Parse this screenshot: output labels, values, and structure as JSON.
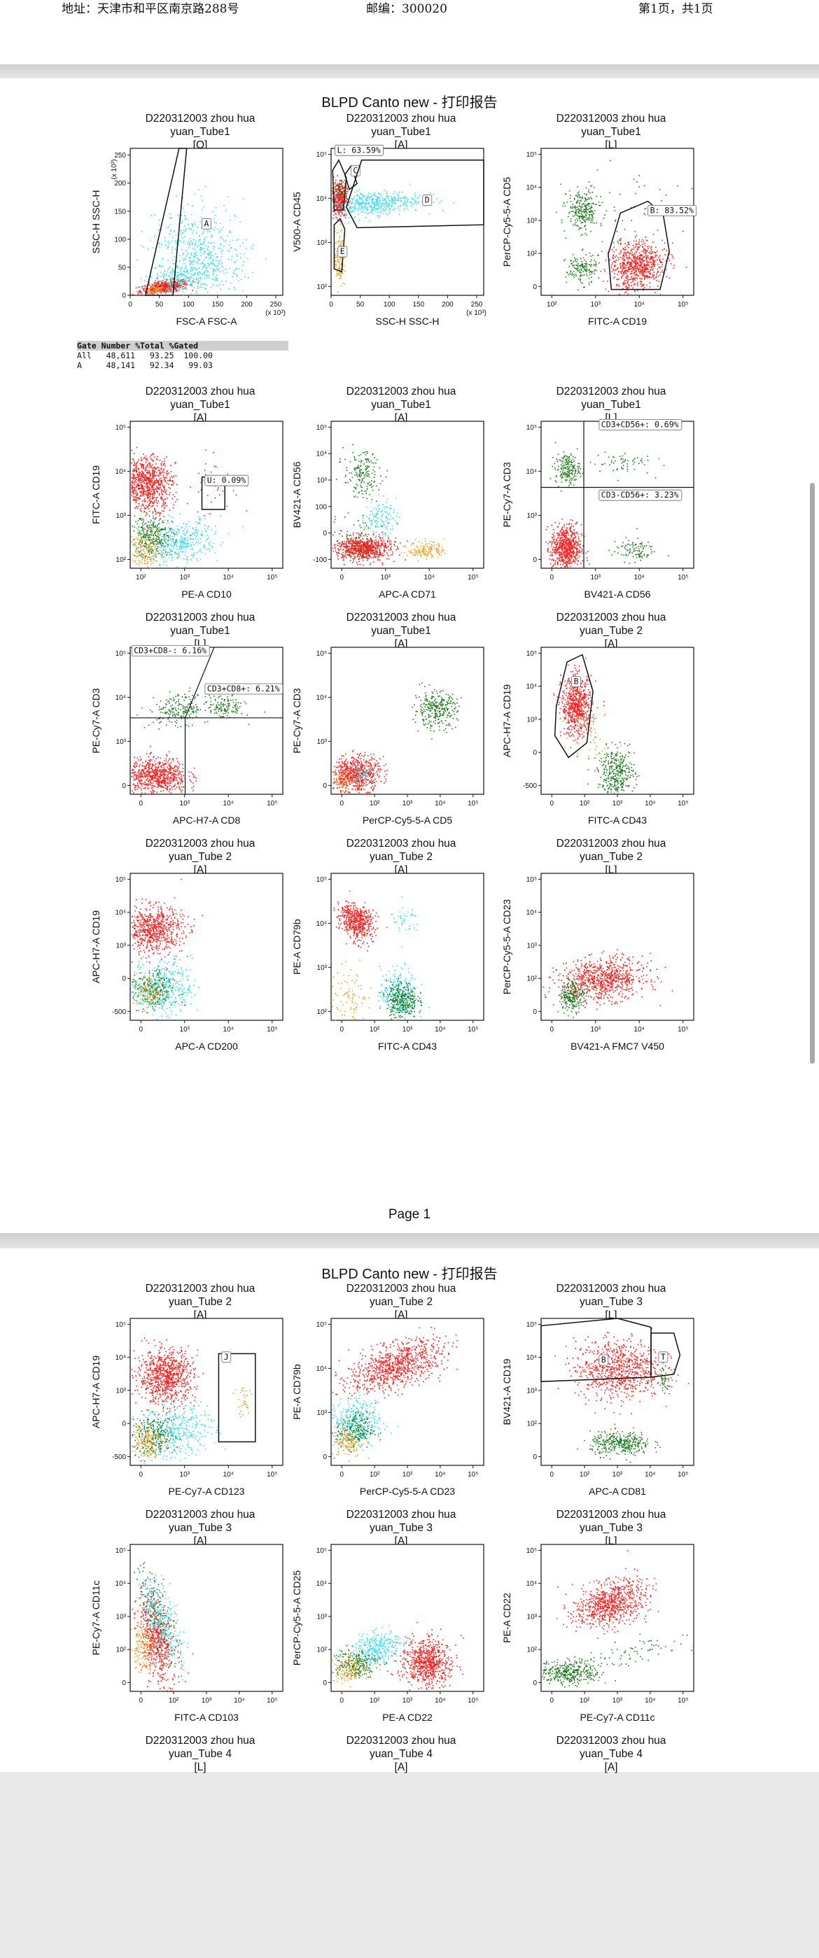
{
  "header": {
    "address": "地址：天津市和平区南京路288号",
    "postcode": "邮编：300020",
    "pageinfo": "第1页，共1页"
  },
  "report_title": "BLPD  Canto new - 打印报告",
  "page_label": "Page 1",
  "gate_stats": {
    "header": "Gate Number %Total %Gated",
    "rows": [
      {
        "gate": "All",
        "number": "48,611",
        "total": "93.25",
        "gated": "100.00"
      },
      {
        "gate": "A",
        "number": "48,141",
        "total": "92.34",
        "gated": "99.03"
      }
    ]
  },
  "colors": {
    "red": "#ff1a1a",
    "cyan": "#33e0f0",
    "green": "#1e7a1e",
    "orange": "#f0a020"
  },
  "chart_data": [
    {
      "id": "p1",
      "type": "scatter",
      "title": [
        "D220312003 zhou hua",
        "yuan_Tube1",
        "[O]"
      ],
      "xlabel": "FSC-A FSC-A",
      "ylabel": "SSC-H SSC-H",
      "xunit": "(x 10³)",
      "yunit": "(x 10³)",
      "xscale": "linear",
      "yscale": "linear",
      "xlim": [
        0,
        262
      ],
      "ylim": [
        0,
        262
      ],
      "xticks": [
        "0",
        "50",
        "100",
        "150",
        "200",
        "250"
      ],
      "yticks": [
        "0",
        "50",
        "100",
        "150",
        "200",
        "250"
      ],
      "gates": [
        {
          "label": "A",
          "text": ""
        }
      ]
    },
    {
      "id": "p2",
      "type": "scatter",
      "title": [
        "D220312003 zhou hua",
        "yuan_Tube1",
        "[A]"
      ],
      "xlabel": "SSC-H SSC-H",
      "ylabel": "V500-A CD45",
      "xunit": "(x 10³)",
      "xscale": "linear",
      "yscale": "log",
      "xlim": [
        0,
        262
      ],
      "xticks": [
        "0",
        "50",
        "100",
        "150",
        "200",
        "250"
      ],
      "yticks": [
        "10²",
        "10³",
        "10⁴",
        "10⁵"
      ],
      "gates": [
        {
          "label": "L",
          "text": "L: 63.59%"
        },
        {
          "label": "C",
          "text": ""
        },
        {
          "label": "D",
          "text": ""
        },
        {
          "label": "E",
          "text": ""
        }
      ]
    },
    {
      "id": "p3",
      "type": "scatter",
      "title": [
        "D220312003 zhou hua",
        "yuan_Tube1",
        "[L]"
      ],
      "xlabel": "FITC-A CD19",
      "ylabel": "PerCP-Cy5-5-A CD5",
      "xscale": "log",
      "yscale": "log",
      "xticks": [
        "10²",
        "10³",
        "10⁴",
        "10⁵"
      ],
      "yticks": [
        "0",
        "10²",
        "10³",
        "10⁴",
        "10⁵"
      ],
      "gates": [
        {
          "label": "B",
          "text": "B: 83.52%"
        }
      ]
    },
    {
      "id": "p4",
      "type": "scatter",
      "title": [
        "D220312003 zhou hua",
        "yuan_Tube1",
        "[A]"
      ],
      "xlabel": "PE-A CD10",
      "ylabel": "FITC-A CD19",
      "xscale": "log",
      "yscale": "log",
      "xticks": [
        "10²",
        "10³",
        "10⁴",
        "10⁵"
      ],
      "yticks": [
        "10²",
        "10³",
        "10⁴",
        "10⁵"
      ],
      "gates": [
        {
          "label": "U",
          "text": "U: 0.09%"
        }
      ]
    },
    {
      "id": "p5",
      "type": "scatter",
      "title": [
        "D220312003 zhou hua",
        "yuan_Tube1",
        "[A]"
      ],
      "xlabel": "APC-A CD71",
      "ylabel": "BV421-A CD56",
      "xscale": "log",
      "yscale": "log",
      "xticks": [
        "0",
        "10³",
        "10⁴",
        "10⁵"
      ],
      "yticks": [
        "-100",
        "0",
        "100",
        "10³",
        "10⁴",
        "10⁵"
      ],
      "gates": []
    },
    {
      "id": "p6",
      "type": "scatter",
      "title": [
        "D220312003 zhou hua",
        "yuan_Tube1",
        "[L]"
      ],
      "xlabel": "BV421-A CD56",
      "ylabel": "PE-Cy7-A CD3",
      "xscale": "log",
      "yscale": "log",
      "xticks": [
        "0",
        "10³",
        "10⁴",
        "10⁵"
      ],
      "yticks": [
        "0",
        "10³",
        "10⁴",
        "10⁵"
      ],
      "gates": [
        {
          "label": "CD3+CD56+",
          "text": "CD3+CD56+: 0.69%"
        },
        {
          "label": "CD3-CD56+",
          "text": "CD3-CD56+: 3.23%"
        }
      ]
    },
    {
      "id": "p7",
      "type": "scatter",
      "title": [
        "D220312003 zhou hua",
        "yuan_Tube1",
        "[L]"
      ],
      "xlabel": "APC-H7-A CD8",
      "ylabel": "PE-Cy7-A CD3",
      "xscale": "log",
      "yscale": "log",
      "xticks": [
        "0",
        "10³",
        "10⁴",
        "10⁵"
      ],
      "yticks": [
        "0",
        "10³",
        "10⁴",
        "10⁵"
      ],
      "gates": [
        {
          "label": "CD3+CD8-",
          "text": "CD3+CD8-: 6.16%"
        },
        {
          "label": "CD3+CD8+",
          "text": "CD3+CD8+: 6.21%"
        }
      ]
    },
    {
      "id": "p8",
      "type": "scatter",
      "title": [
        "D220312003 zhou hua",
        "yuan_Tube1",
        "[A]"
      ],
      "xlabel": "PerCP-Cy5-5-A CD5",
      "ylabel": "PE-Cy7-A CD3",
      "xscale": "log",
      "yscale": "log",
      "xticks": [
        "0",
        "10²",
        "10³",
        "10⁴",
        "10⁵"
      ],
      "yticks": [
        "0",
        "10³",
        "10⁴",
        "10⁵"
      ],
      "gates": []
    },
    {
      "id": "p9",
      "type": "scatter",
      "title": [
        "D220312003 zhou hua",
        "yuan_Tube 2",
        "[A]"
      ],
      "xlabel": "FITC-A CD43",
      "ylabel": "APC-H7-A CD19",
      "xscale": "log",
      "yscale": "log",
      "xticks": [
        "0",
        "10²",
        "10³",
        "10⁴",
        "10⁵"
      ],
      "yticks": [
        "-500",
        "0",
        "10³",
        "10⁴",
        "10⁵"
      ],
      "gates": [
        {
          "label": "B",
          "text": ""
        }
      ]
    },
    {
      "id": "p10",
      "type": "scatter",
      "title": [
        "D220312003 zhou hua",
        "yuan_Tube 2",
        "[A]"
      ],
      "xlabel": "APC-A CD200",
      "ylabel": "APC-H7-A CD19",
      "xscale": "log",
      "yscale": "log",
      "xticks": [
        "0",
        "10³",
        "10⁴",
        "10⁵"
      ],
      "yticks": [
        "-500",
        "0",
        "10³",
        "10⁴",
        "10⁵"
      ],
      "gates": []
    },
    {
      "id": "p11",
      "type": "scatter",
      "title": [
        "D220312003 zhou hua",
        "yuan_Tube 2",
        "[A]"
      ],
      "xlabel": "FITC-A CD43",
      "ylabel": "PE-A CD79b",
      "xscale": "log",
      "yscale": "log",
      "xticks": [
        "0",
        "10²",
        "10³",
        "10⁴",
        "10⁵"
      ],
      "yticks": [
        "10²",
        "10³",
        "10⁴",
        "10⁵"
      ],
      "gates": []
    },
    {
      "id": "p12",
      "type": "scatter",
      "title": [
        "D220312003 zhou hua",
        "yuan_Tube 2",
        "[L]"
      ],
      "xlabel": "BV421-A FMC7 V450",
      "ylabel": "PerCP-Cy5-5-A CD23",
      "xscale": "log",
      "yscale": "log",
      "xticks": [
        "0",
        "10³",
        "10⁴",
        "10⁵"
      ],
      "yticks": [
        "0",
        "10²",
        "10³",
        "10⁴",
        "10⁵"
      ],
      "gates": []
    },
    {
      "id": "p13",
      "type": "scatter",
      "title": [
        "D220312003 zhou hua",
        "yuan_Tube 2",
        "[A]"
      ],
      "xlabel": "PE-Cy7-A CD123",
      "ylabel": "APC-H7-A CD19",
      "xscale": "log",
      "yscale": "log",
      "xticks": [
        "0",
        "10³",
        "10⁴",
        "10⁵"
      ],
      "yticks": [
        "-500",
        "0",
        "10³",
        "10⁴",
        "10⁵"
      ],
      "gates": [
        {
          "label": "J",
          "text": ""
        }
      ]
    },
    {
      "id": "p14",
      "type": "scatter",
      "title": [
        "D220312003 zhou hua",
        "yuan_Tube 2",
        "[A]"
      ],
      "xlabel": "PerCP-Cy5-5-A CD23",
      "ylabel": "PE-A CD79b",
      "xscale": "log",
      "yscale": "log",
      "xticks": [
        "0",
        "10²",
        "10³",
        "10⁴",
        "10⁵"
      ],
      "yticks": [
        "0",
        "10³",
        "10⁴",
        "10⁵"
      ],
      "gates": []
    },
    {
      "id": "p15",
      "type": "scatter",
      "title": [
        "D220312003 zhou hua",
        "yuan_Tube 3",
        "[L]"
      ],
      "xlabel": "APC-A CD81",
      "ylabel": "BV421-A CD19",
      "xscale": "log",
      "yscale": "log",
      "xticks": [
        "0",
        "10²",
        "10³",
        "10⁴",
        "10⁵"
      ],
      "yticks": [
        "0",
        "10²",
        "10³",
        "10⁴",
        "10⁵"
      ],
      "gates": [
        {
          "label": "B",
          "text": ""
        },
        {
          "label": "T",
          "text": ""
        }
      ]
    },
    {
      "id": "p16",
      "type": "scatter",
      "title": [
        "D220312003 zhou hua",
        "yuan_Tube 3",
        "[A]"
      ],
      "xlabel": "FITC-A CD103",
      "ylabel": "PE-Cy7-A CD11c",
      "xscale": "log",
      "yscale": "log",
      "xticks": [
        "0",
        "10²",
        "10³",
        "10⁴",
        "10⁵"
      ],
      "yticks": [
        "0",
        "10²",
        "10³",
        "10⁴",
        "10⁵"
      ],
      "gates": []
    },
    {
      "id": "p17",
      "type": "scatter",
      "title": [
        "D220312003 zhou hua",
        "yuan_Tube 3",
        "[A]"
      ],
      "xlabel": "PE-A CD22",
      "ylabel": "PerCP-Cy5-5-A CD25",
      "xscale": "log",
      "yscale": "log",
      "xticks": [
        "0",
        "10²",
        "10³",
        "10⁴",
        "10⁵"
      ],
      "yticks": [
        "0",
        "10²",
        "10³",
        "10⁴",
        "10⁵"
      ],
      "gates": []
    },
    {
      "id": "p18",
      "type": "scatter",
      "title": [
        "D220312003 zhou hua",
        "yuan_Tube 3",
        "[L]"
      ],
      "xlabel": "PE-Cy7-A CD11c",
      "ylabel": "PE-A CD22",
      "xscale": "log",
      "yscale": "log",
      "xticks": [
        "0",
        "10²",
        "10³",
        "10⁴",
        "10⁵"
      ],
      "yticks": [
        "0",
        "10²",
        "10³",
        "10⁴",
        "10⁵"
      ],
      "gates": []
    },
    {
      "id": "p19",
      "type": "scatter",
      "title": [
        "D220312003 zhou hua",
        "yuan_Tube 4",
        "[L]"
      ],
      "xlabel": "",
      "ylabel": "",
      "gates": []
    },
    {
      "id": "p20",
      "type": "scatter",
      "title": [
        "D220312003 zhou hua",
        "yuan_Tube 4",
        "[A]"
      ],
      "xlabel": "",
      "ylabel": "",
      "gates": []
    },
    {
      "id": "p21",
      "type": "scatter",
      "title": [
        "D220312003 zhou hua",
        "yuan_Tube 4",
        "[A]"
      ],
      "xlabel": "",
      "ylabel": "",
      "gates": []
    }
  ]
}
